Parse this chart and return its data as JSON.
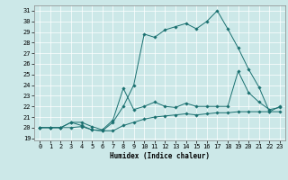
{
  "xlabel": "Humidex (Indice chaleur)",
  "bg_color": "#cce8e8",
  "line_color": "#1a7070",
  "xlim": [
    -0.5,
    23.5
  ],
  "ylim": [
    18.8,
    31.5
  ],
  "xticks": [
    0,
    1,
    2,
    3,
    4,
    5,
    6,
    7,
    8,
    9,
    10,
    11,
    12,
    13,
    14,
    15,
    16,
    17,
    18,
    19,
    20,
    21,
    22,
    23
  ],
  "yticks": [
    19,
    20,
    21,
    22,
    23,
    24,
    25,
    26,
    27,
    28,
    29,
    30,
    31
  ],
  "line1_x": [
    0,
    1,
    2,
    3,
    4,
    5,
    6,
    7,
    8,
    9,
    10,
    11,
    12,
    13,
    14,
    15,
    16,
    17,
    18,
    19,
    20,
    21,
    22,
    23
  ],
  "line1_y": [
    20.0,
    20.0,
    20.0,
    20.0,
    20.1,
    19.8,
    19.7,
    19.7,
    20.2,
    20.5,
    20.8,
    21.0,
    21.1,
    21.2,
    21.3,
    21.2,
    21.3,
    21.4,
    21.4,
    21.5,
    21.5,
    21.5,
    21.5,
    21.5
  ],
  "line2_x": [
    0,
    1,
    2,
    3,
    4,
    5,
    6,
    7,
    8,
    9,
    10,
    11,
    12,
    13,
    14,
    15,
    16,
    17,
    18,
    19,
    20,
    21,
    22,
    23
  ],
  "line2_y": [
    20.0,
    20.0,
    20.0,
    20.5,
    20.5,
    20.1,
    19.8,
    20.7,
    23.7,
    21.7,
    22.0,
    22.4,
    22.0,
    21.9,
    22.3,
    22.0,
    22.0,
    22.0,
    22.0,
    25.3,
    23.3,
    22.4,
    21.7,
    21.9
  ],
  "line3_x": [
    0,
    1,
    2,
    3,
    4,
    5,
    6,
    7,
    8,
    9,
    10,
    11,
    12,
    13,
    14,
    15,
    16,
    17,
    18,
    19,
    20,
    21,
    22,
    23
  ],
  "line3_y": [
    20.0,
    20.0,
    20.0,
    20.5,
    20.2,
    19.8,
    19.7,
    20.5,
    22.0,
    24.0,
    28.8,
    28.5,
    29.2,
    29.5,
    29.8,
    29.3,
    30.0,
    31.0,
    29.3,
    27.5,
    25.5,
    23.8,
    21.5,
    22.0
  ],
  "tick_fontsize": 5.0,
  "xlabel_fontsize": 5.5
}
